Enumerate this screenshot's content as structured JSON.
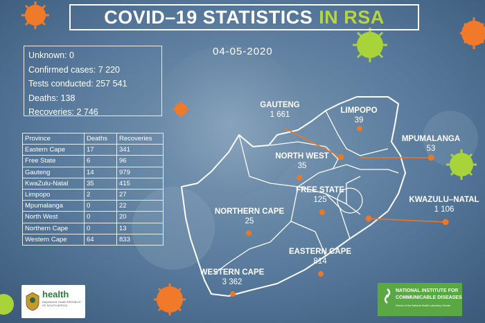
{
  "title": {
    "main": "COVID–19 STATISTICS",
    "accent": "IN RSA"
  },
  "date": "04-05-2020",
  "summary": {
    "unknown": "Unknown: 0",
    "confirmed": "Confirmed cases: 7 220",
    "tests": "Tests conducted: 257 541",
    "deaths": "Deaths: 138",
    "recoveries": "Recoveries:  2  746"
  },
  "table": {
    "headers": [
      "Province",
      "Deaths",
      "Recoveries"
    ],
    "rows": [
      [
        "Eastern Cape",
        "17",
        "341"
      ],
      [
        "Free State",
        "6",
        "96"
      ],
      [
        "Gauteng",
        "14",
        "979"
      ],
      [
        "KwaZulu-Natal",
        "35",
        "415"
      ],
      [
        "Limpopo",
        "2",
        "27"
      ],
      [
        "Mpumalanga",
        "0",
        "22"
      ],
      [
        "North West",
        "0",
        "20"
      ],
      [
        "Northern Cape",
        "0",
        "13"
      ],
      [
        "Western Cape",
        "64",
        "833"
      ]
    ]
  },
  "map": {
    "gauteng": {
      "name": "GAUTENG",
      "cases": "1 661"
    },
    "limpopo": {
      "name": "LIMPOPO",
      "cases": "39"
    },
    "mpumalanga": {
      "name": "MPUMALANGA",
      "cases": "53"
    },
    "north_west": {
      "name": "NORTH WEST",
      "cases": "35"
    },
    "free_state": {
      "name": "FREE STATE",
      "cases": "125"
    },
    "kwazulu_natal": {
      "name": "KWAZULU–NATAL",
      "cases": "1 106"
    },
    "northern_cape": {
      "name": "NORTHERN CAPE",
      "cases": "25"
    },
    "eastern_cape": {
      "name": "EASTERN CAPE",
      "cases": "814"
    },
    "western_cape": {
      "name": "WESTERN CAPE",
      "cases": "3 362"
    }
  },
  "logos": {
    "health_word": "health",
    "health_sub": "Department: Health REPUBLIC OF SOUTH AFRICA",
    "nicd_line1": "NATIONAL INSTITUTE FOR",
    "nicd_line2": "COMMUNICABLE DISEASES",
    "nicd_tag": "Division of the National Health Laboratory Service"
  },
  "colors": {
    "accent_green": "#b7d63a",
    "marker_orange": "#e8782a",
    "bg_blue": "#4d6f8e"
  }
}
